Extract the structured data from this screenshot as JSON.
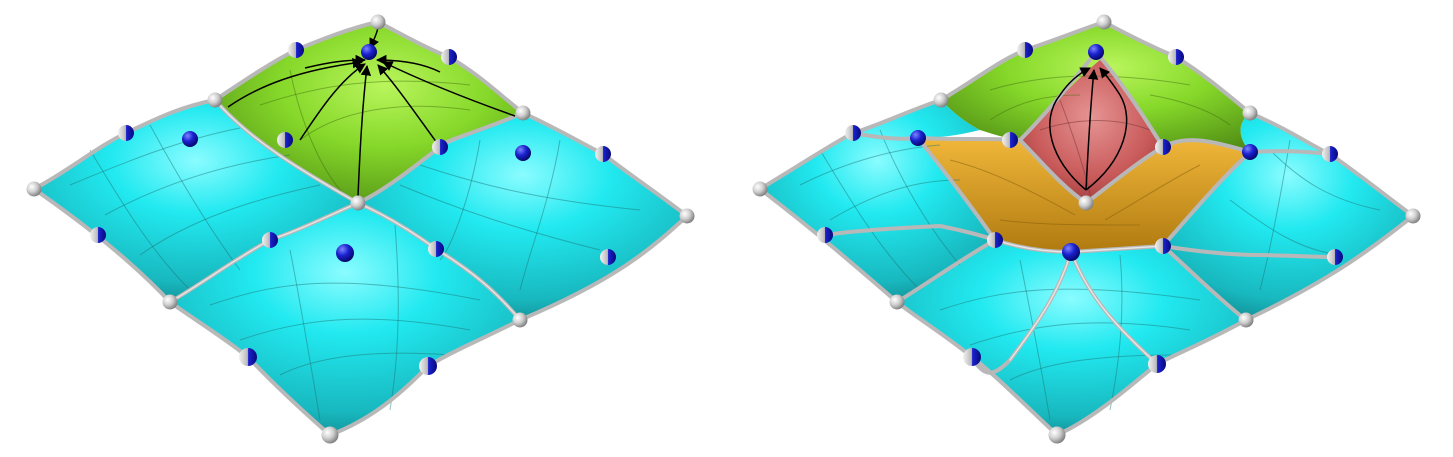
{
  "figure": {
    "panels": [
      {
        "id": "left",
        "description_free": true
      },
      {
        "id": "right",
        "description_free": true
      }
    ],
    "colors": {
      "background": "#ffffff",
      "cyan_surface": "#1fd6dc",
      "cyan_highlight": "#7ff8fb",
      "cyan_shadow": "#128a90",
      "green_surface": "#7fd023",
      "green_highlight": "#b6f25a",
      "green_shadow": "#4e8a12",
      "red_surface": "#c75757",
      "red_highlight": "#e08a8a",
      "orange_surface": "#e3a425",
      "orange_shadow": "#a8720c",
      "grey_vertex": "#cfcfcf",
      "blue_vertex": "#1820c8",
      "arrow": "#000000"
    },
    "icons": {
      "grey_vertex": "grey-sphere-control-point",
      "blue_vertex": "blue-sphere-control-point"
    }
  }
}
